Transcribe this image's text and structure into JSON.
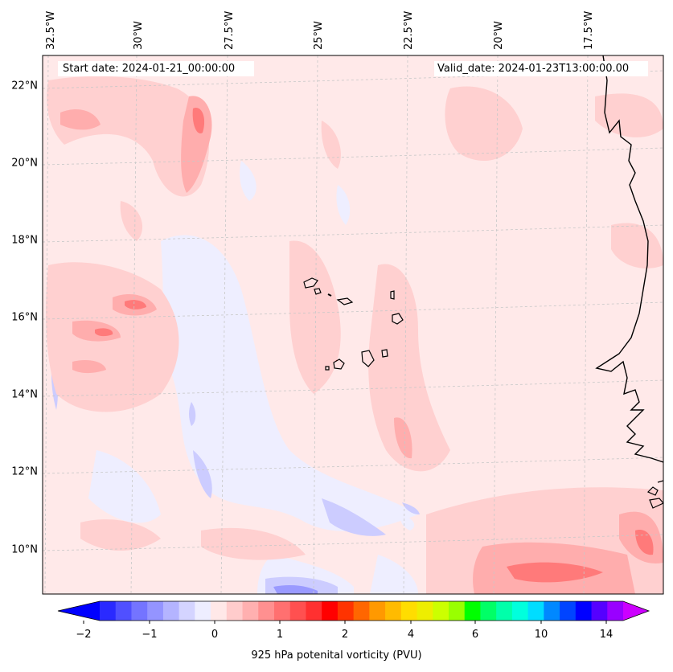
{
  "header": {
    "start_date": "Start date: 2024-01-21_00:00:00",
    "valid_date": "Valid_date: 2024-01-23T13:00:00.00"
  },
  "longitude_labels": [
    "32.5°W",
    "30°W",
    "27.5°W",
    "25°W",
    "22.5°W",
    "20°W",
    "17.5°W"
  ],
  "latitude_labels": [
    "22°N",
    "20°N",
    "18°N",
    "16°N",
    "14°N",
    "12°N",
    "10°N"
  ],
  "colorbar": {
    "title": "925 hPa potenital vorticity (PVU)",
    "tick_labels": [
      "−2",
      "−1",
      "0",
      "1",
      "2",
      "4",
      "6",
      "10",
      "14"
    ],
    "colors": [
      "#0000ff",
      "#2a2aff",
      "#5050ff",
      "#7474ff",
      "#9494ff",
      "#b4b4ff",
      "#d4d4ff",
      "#eeeeff",
      "#ffe8e8",
      "#ffcccc",
      "#ffb0b0",
      "#ff9090",
      "#ff7070",
      "#ff5050",
      "#ff3030",
      "#ff0000",
      "#ff3300",
      "#ff6600",
      "#ff9900",
      "#ffbb00",
      "#ffdd00",
      "#eeee00",
      "#ccff00",
      "#99ff00",
      "#00ff00",
      "#00ff66",
      "#00ffaa",
      "#00ffdd",
      "#00ddff",
      "#0088ff",
      "#0044ff",
      "#0000ff",
      "#5500ff",
      "#9900ff",
      "#cc00ff"
    ]
  },
  "colors": {
    "base_field": "#ffe9e9",
    "weak_positive": "#ffd0d0",
    "moderate_positive": "#ffadad",
    "strong_positive": "#ff7a7a",
    "weak_negative": "#eeeeff",
    "moderate_negative": "#ccccff",
    "coastline": "#000000"
  }
}
